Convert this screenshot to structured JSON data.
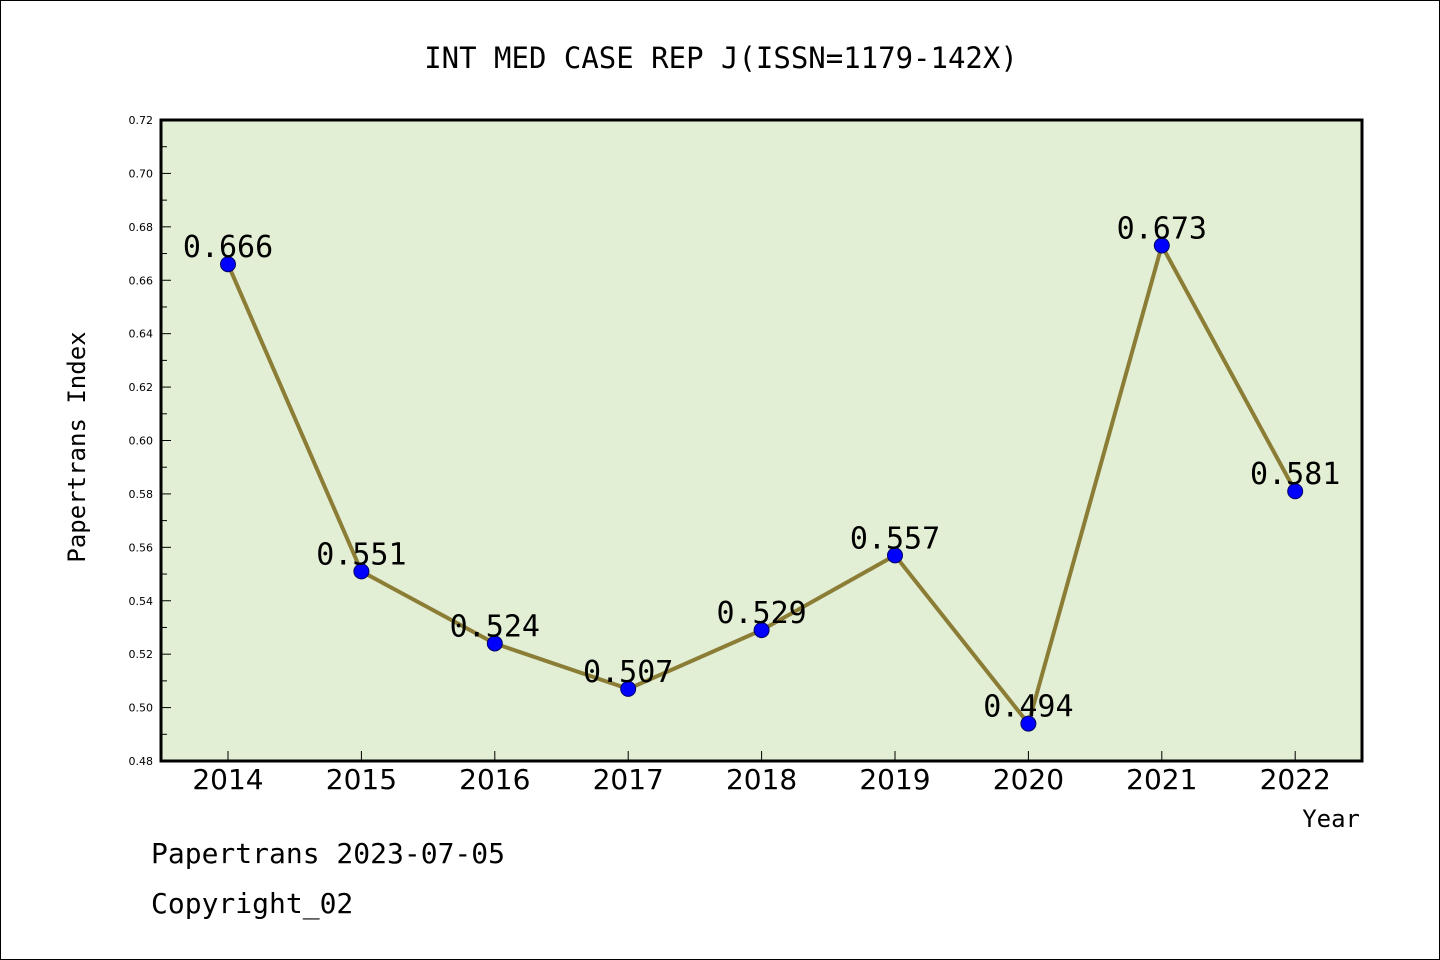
{
  "chart_data": {
    "type": "line",
    "title": "INT MED CASE REP J(ISSN=1179-142X)",
    "xlabel": "Year",
    "ylabel": "Papertrans Index",
    "categories": [
      "2014",
      "2015",
      "2016",
      "2017",
      "2018",
      "2019",
      "2020",
      "2021",
      "2022"
    ],
    "values": [
      0.666,
      0.551,
      0.524,
      0.507,
      0.529,
      0.557,
      0.494,
      0.673,
      0.581
    ],
    "data_labels": [
      "0.666",
      "0.551",
      "0.524",
      "0.507",
      "0.529",
      "0.557",
      "0.494",
      "0.673",
      "0.581"
    ],
    "ylim": [
      0.48,
      0.72
    ],
    "y_ticks": [
      "0.48",
      "0.50",
      "0.52",
      "0.54",
      "0.56",
      "0.58",
      "0.60",
      "0.62",
      "0.64",
      "0.66",
      "0.68",
      "0.70",
      "0.72"
    ],
    "grid": false,
    "legend": "none",
    "colors": {
      "plot_background": "#e2efd4",
      "line": "#8b7d35",
      "marker": "#0000ff"
    }
  },
  "footer": {
    "date_line": "Papertrans 2023-07-05",
    "copyright": "Copyright_02"
  }
}
